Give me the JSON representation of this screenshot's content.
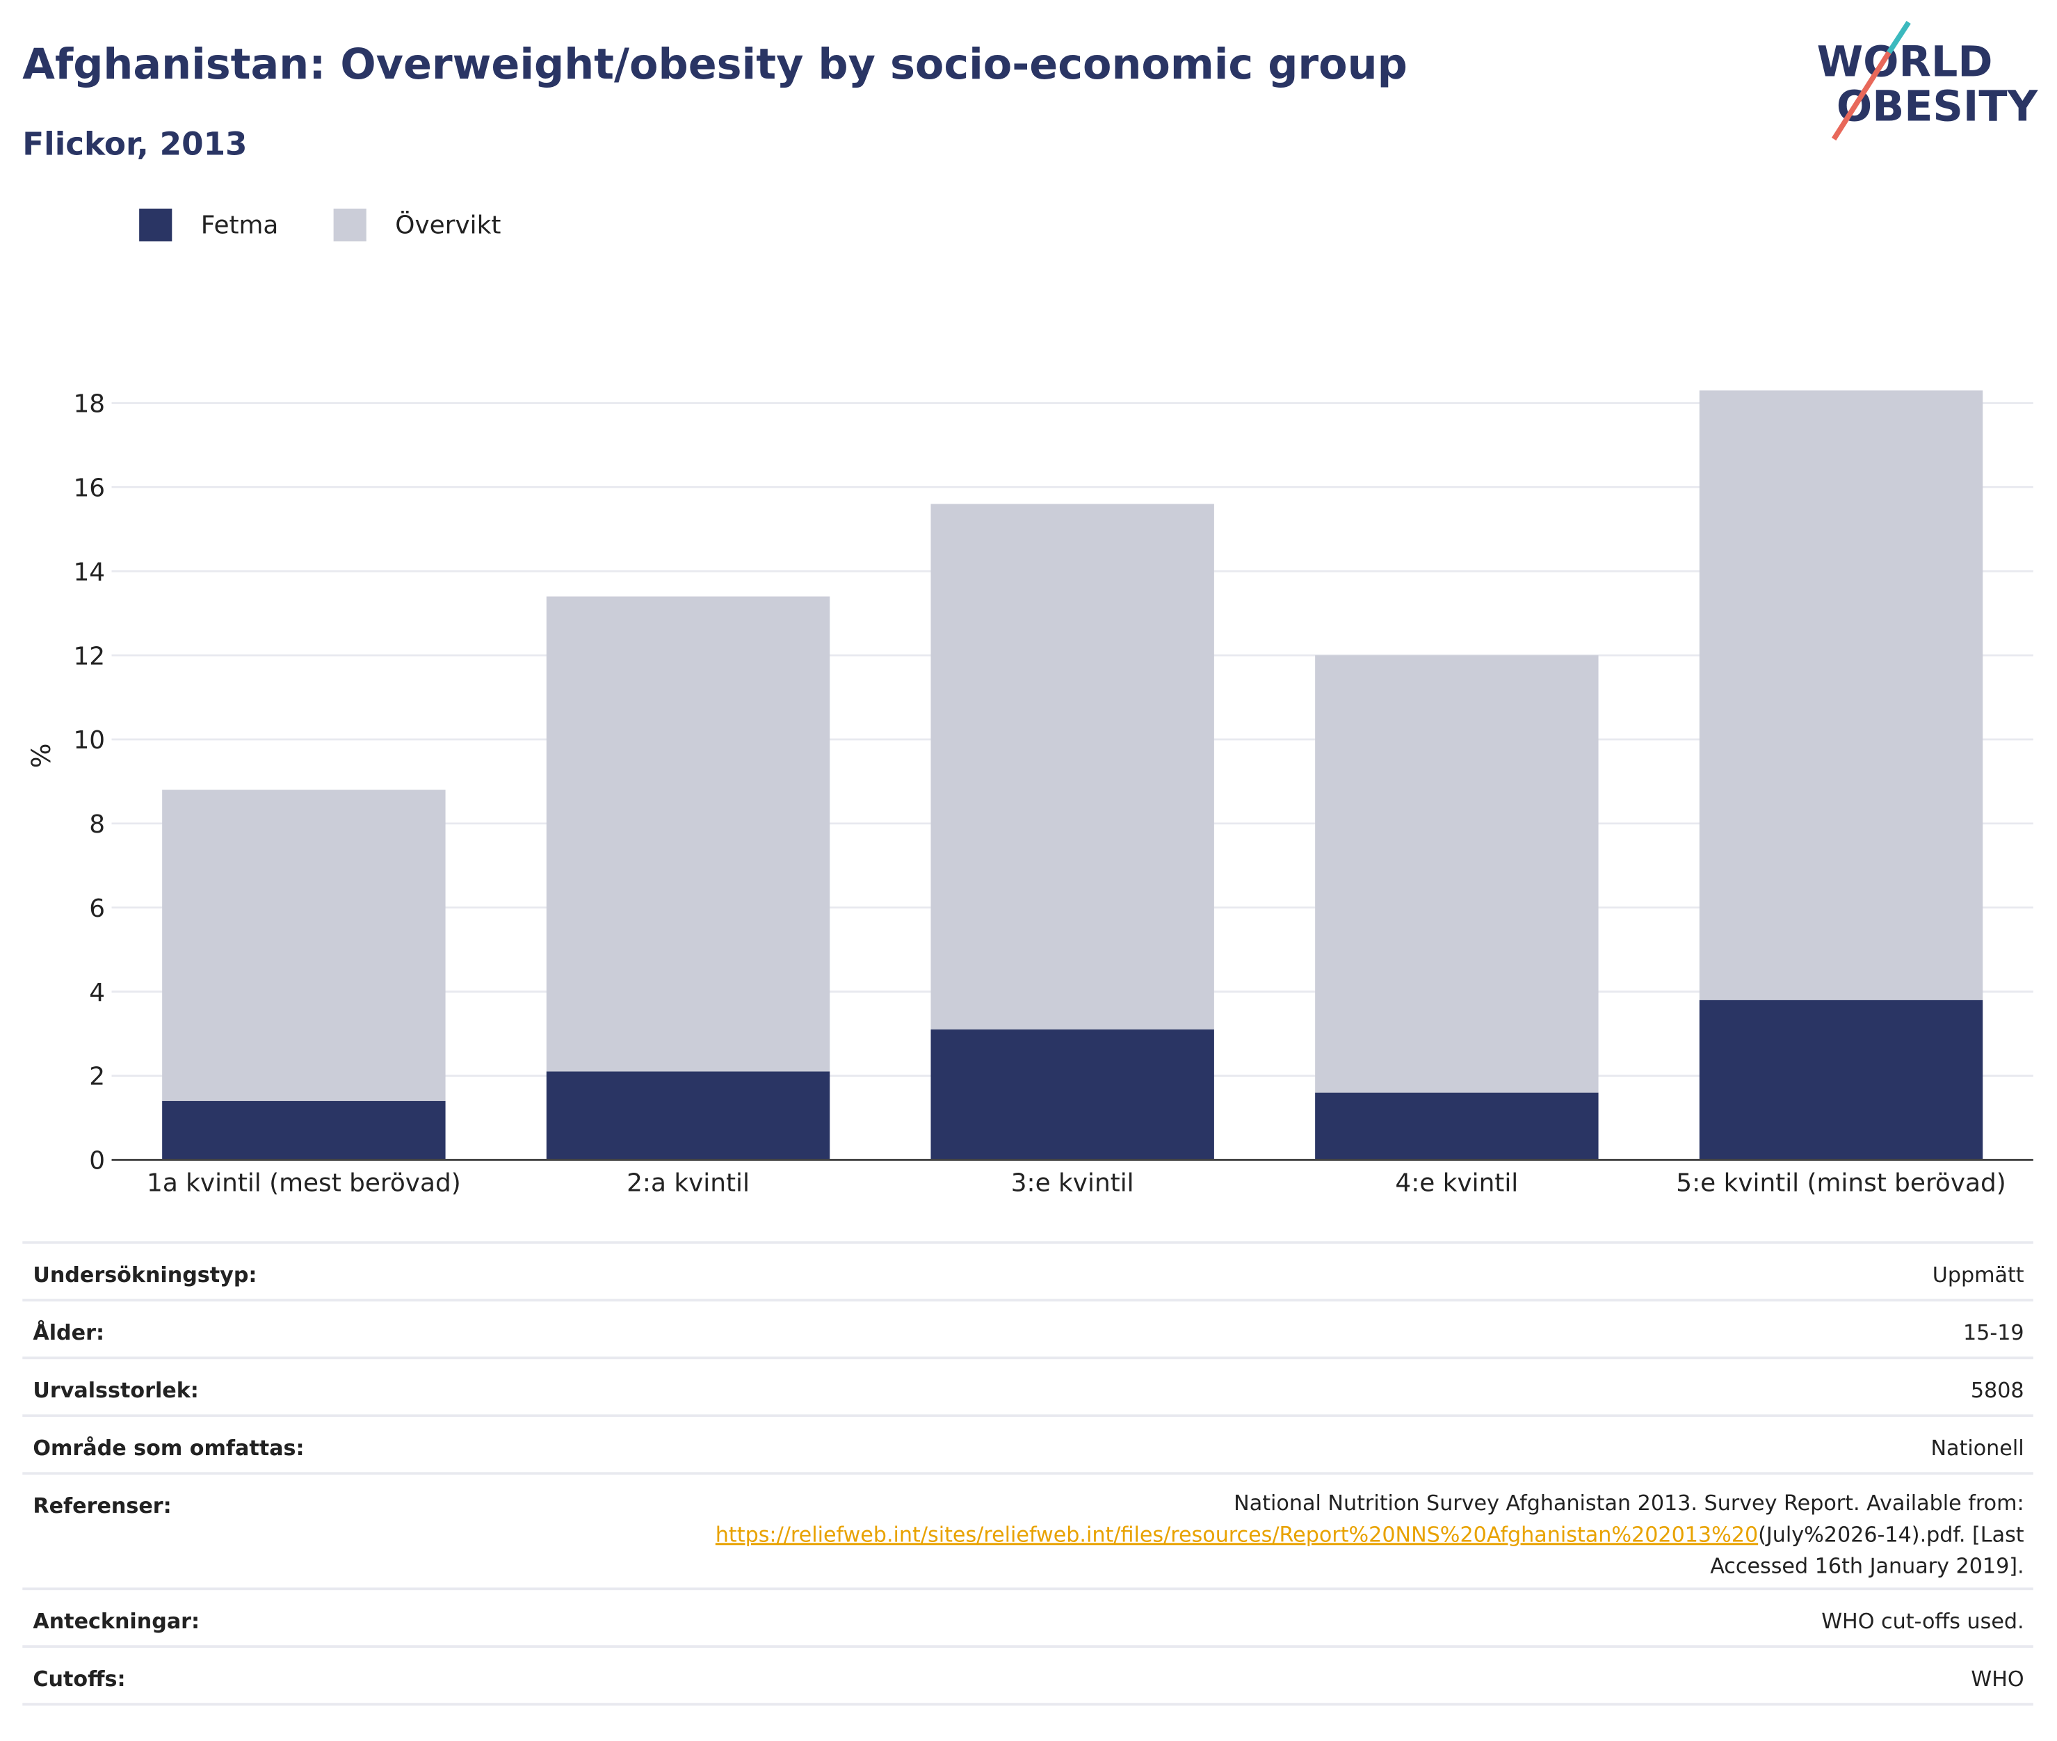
{
  "chart_data": {
    "type": "stacked_bar",
    "title": "Afghanistan: Overweight/obesity by socio-economic group",
    "subtitle": "Flickor, 2013",
    "y_label": "%",
    "categories": [
      "1a kvintil (mest berövad)",
      "2:a kvintil",
      "3:e kvintil",
      "4:e kvintil",
      "5:e kvintil (minst berövad)"
    ],
    "series": [
      {
        "name": "Fetma",
        "color": "#2a3564",
        "values": [
          1.4,
          2.1,
          3.1,
          1.6,
          3.8
        ]
      },
      {
        "name": "Övervikt",
        "color": "#cbcdd8",
        "values": [
          7.4,
          11.3,
          12.5,
          10.4,
          14.5
        ]
      }
    ],
    "ylim": [
      0,
      18.6
    ],
    "yticks": [
      0,
      2,
      4,
      6,
      8,
      10,
      12,
      14,
      16,
      18
    ],
    "grid": true,
    "legend": "top-left"
  },
  "logo": [
    "WORLD",
    "OBESITY"
  ],
  "details": [
    {
      "label": "Undersökningstyp:",
      "value": "Uppmätt"
    },
    {
      "label": "Ålder:",
      "value": "15-19"
    },
    {
      "label": "Urvalsstorlek:",
      "value": "5808"
    },
    {
      "label": "Område som omfattas:",
      "value": "Nationell"
    },
    {
      "label": "Referenser:",
      "value": {
        "line1": "National Nutrition Survey Afghanistan 2013. Survey Report. Available from:",
        "link": "https://reliefweb.int/sites/reliefweb.int/files/resources/Report%20NNS%20Afghanistan%202013%20",
        "line2": "(July%2026-14).pdf. [Last",
        "line3": "Accessed 16th January 2019]."
      }
    },
    {
      "label": "Anteckningar:",
      "value": "WHO cut-offs used."
    },
    {
      "label": "Cutoffs:",
      "value": "WHO"
    }
  ]
}
